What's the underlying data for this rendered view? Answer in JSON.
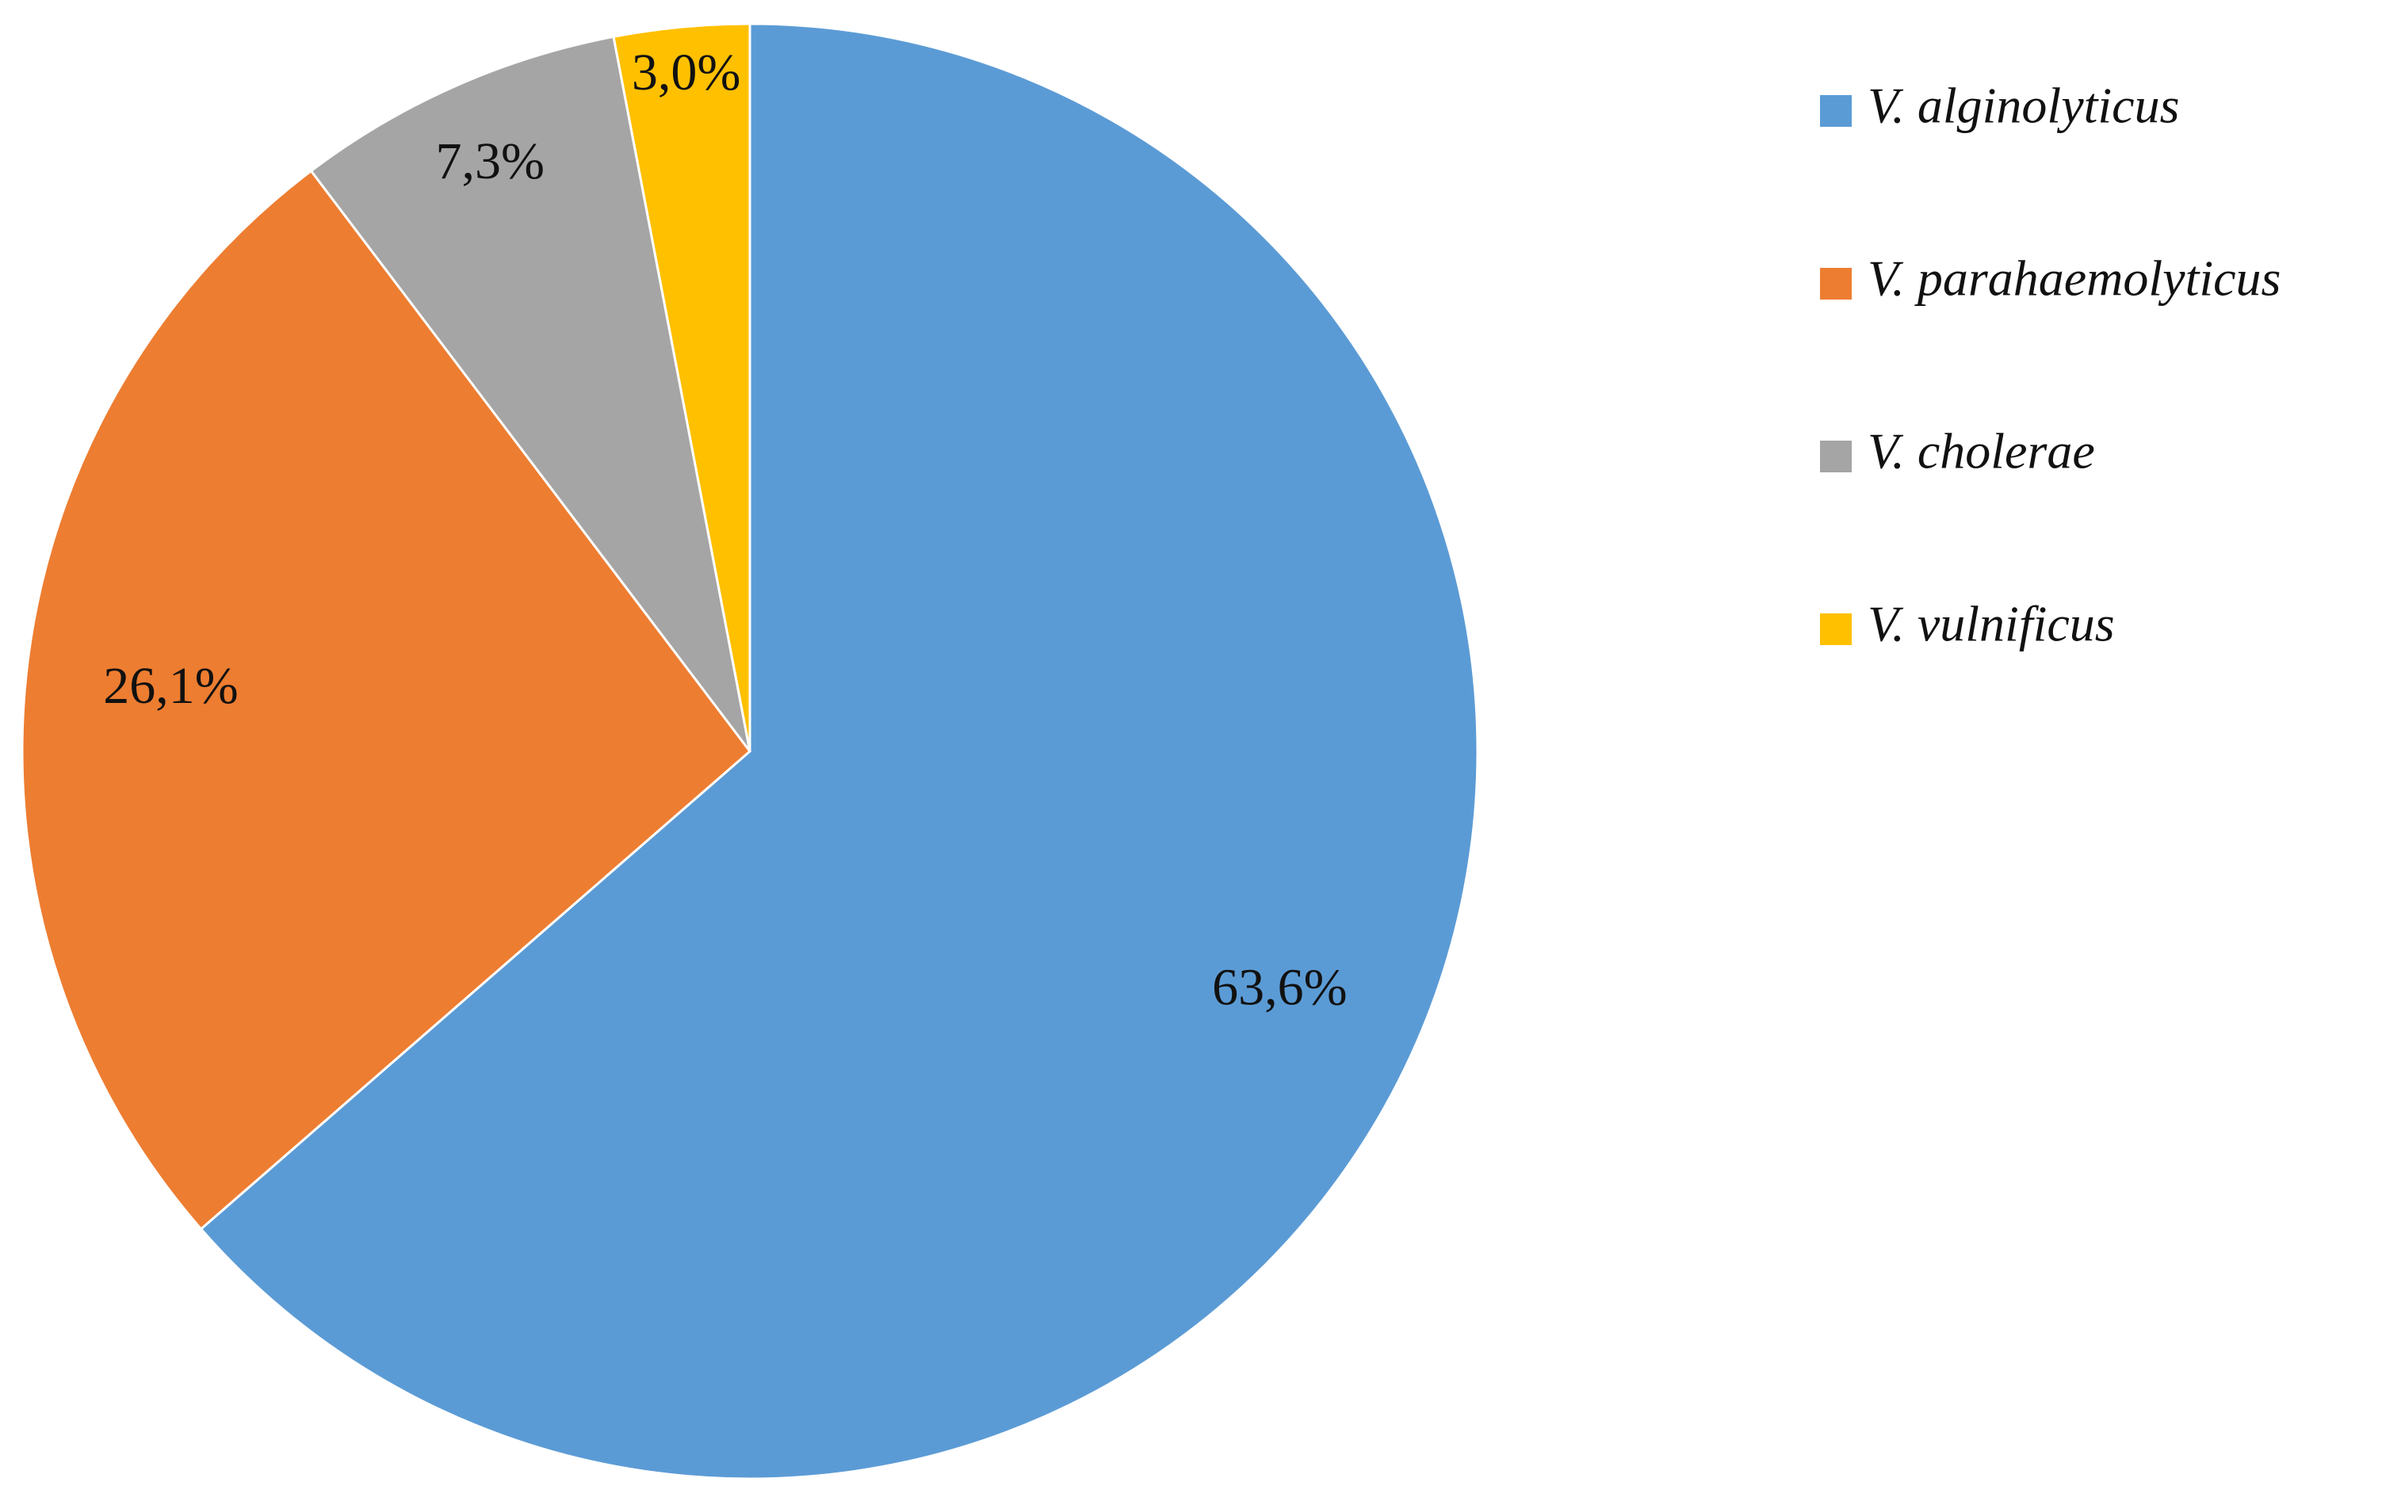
{
  "chart_data": {
    "type": "pie",
    "categories": [
      "V. alginolyticus",
      "V. parahaemolyticus",
      "V. cholerae",
      "V. vulnificus"
    ],
    "values": [
      63.6,
      26.1,
      7.3,
      3.0
    ],
    "value_labels": [
      "63,6%",
      "26,1%",
      "7,3%",
      "3,0%"
    ],
    "colors": [
      "#5b9bd5",
      "#ed7d31",
      "#a5a5a5",
      "#ffc000"
    ],
    "legend": "right"
  }
}
